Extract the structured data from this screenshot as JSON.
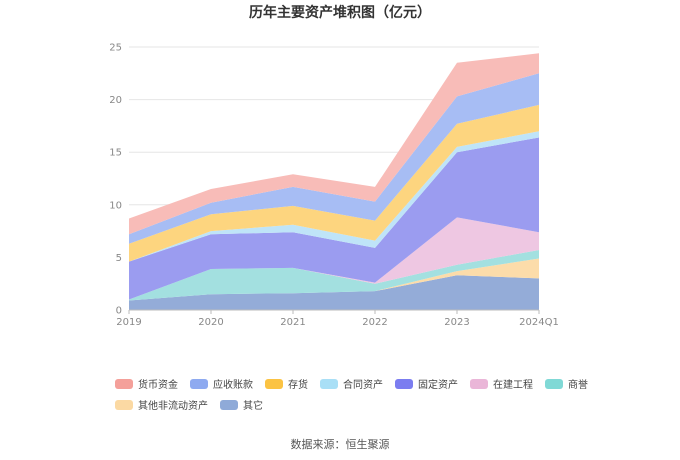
{
  "chart_data": {
    "type": "area",
    "stacked": true,
    "title": "历年主要资产堆积图（亿元）",
    "xlabel": "",
    "ylabel": "",
    "categories": [
      "2019",
      "2020",
      "2021",
      "2022",
      "2023",
      "2024Q1"
    ],
    "ylim": [
      0,
      25
    ],
    "yticks": [
      0,
      5,
      10,
      15,
      20,
      25
    ],
    "grid": true,
    "legend_position": "bottom",
    "series": [
      {
        "name": "其它",
        "color": "#94acd8",
        "values": [
          0.9,
          1.5,
          1.6,
          1.8,
          3.3,
          3.0
        ]
      },
      {
        "name": "其他非流动资产",
        "color": "#fcdcaa",
        "values": [
          0.0,
          0.0,
          0.0,
          0.0,
          0.4,
          1.9
        ]
      },
      {
        "name": "商誉",
        "color": "#a3e0e0",
        "values": [
          0.1,
          2.4,
          2.4,
          0.7,
          0.6,
          0.8
        ]
      },
      {
        "name": "在建工程",
        "color": "#eec7e2",
        "values": [
          0.0,
          0.0,
          0.0,
          0.1,
          4.5,
          1.7
        ]
      },
      {
        "name": "固定资产",
        "color": "#9b9cf0",
        "values": [
          3.6,
          3.3,
          3.4,
          3.3,
          6.2,
          9.0
        ]
      },
      {
        "name": "合同资产",
        "color": "#bfe4f8",
        "values": [
          0.0,
          0.3,
          0.7,
          0.7,
          0.5,
          0.6
        ]
      },
      {
        "name": "存货",
        "color": "#fdd57f",
        "values": [
          1.7,
          1.6,
          1.8,
          1.9,
          2.2,
          2.5
        ]
      },
      {
        "name": "应收账款",
        "color": "#a7bdf4",
        "values": [
          0.9,
          1.1,
          1.8,
          1.8,
          2.6,
          3.0
        ]
      },
      {
        "name": "货币资金",
        "color": "#f8bcb8",
        "values": [
          1.5,
          1.3,
          1.2,
          1.4,
          3.2,
          1.9
        ]
      }
    ],
    "legend_order": [
      "货币资金",
      "应收账款",
      "存货",
      "合同资产",
      "固定资产",
      "在建工程",
      "商誉",
      "其他非流动资产",
      "其它"
    ],
    "legend_colors": {
      "货币资金": "#f4a09a",
      "应收账款": "#8eaaf0",
      "存货": "#fbc343",
      "合同资产": "#a9dff6",
      "固定资产": "#7b7df0",
      "在建工程": "#eab6d8",
      "商誉": "#80d9d6",
      "其他非流动资产": "#fbd9a3",
      "其它": "#8faad8"
    }
  },
  "source": "数据来源：恒生聚源"
}
